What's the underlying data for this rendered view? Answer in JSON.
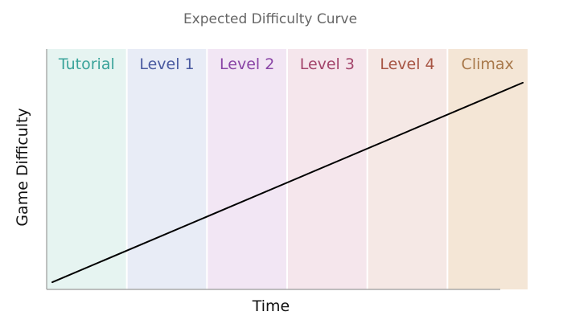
{
  "chart_data": {
    "type": "line",
    "title": "Expected Difficulty Curve",
    "xlabel": "Time",
    "ylabel": "Game Difficulty",
    "phases": [
      {
        "label": "Tutorial",
        "background": "#e6f4f1",
        "color": "#3aa39a"
      },
      {
        "label": "Level 1",
        "background": "#e8ecf6",
        "color": "#4a5aa0"
      },
      {
        "label": "Level 2",
        "background": "#f2e6f4",
        "color": "#8a45a6"
      },
      {
        "label": "Level 3",
        "background": "#f5e6ec",
        "color": "#a3456b"
      },
      {
        "label": "Level 4",
        "background": "#f5e8e5",
        "color": "#a75544"
      },
      {
        "label": "Climax",
        "background": "#f4e6d6",
        "color": "#a8784a"
      }
    ],
    "series": [
      {
        "x": [
          0,
          1
        ],
        "y": [
          0.03,
          0.86
        ],
        "color": "#000000"
      }
    ],
    "xlim": [
      0,
      1
    ],
    "ylim": [
      0,
      1
    ],
    "grid": false
  }
}
